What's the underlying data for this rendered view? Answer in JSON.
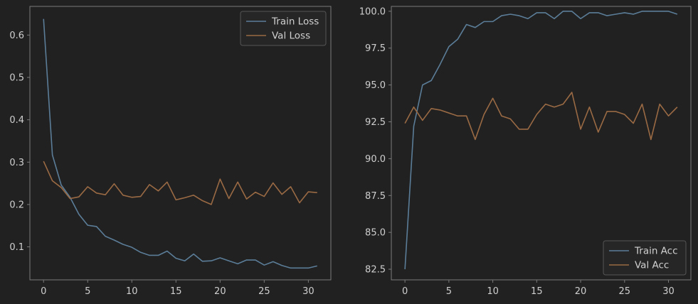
{
  "colors": {
    "background": "#212121",
    "axes_face": "#212121",
    "spine": "#7a7a7a",
    "tick": "#cfcfcf",
    "train": "#5b7d98",
    "val": "#9a6a44",
    "legend_bg": "#262626",
    "legend_edge": "#555555"
  },
  "chart_data": [
    {
      "type": "line",
      "title": "",
      "xlabel": "",
      "ylabel": "",
      "xlim": [
        -1.55,
        32.55
      ],
      "ylim": [
        0.0221,
        0.6677
      ],
      "xticks": [
        0,
        5,
        10,
        15,
        20,
        25,
        30
      ],
      "xtick_labels": [
        "0",
        "5",
        "10",
        "15",
        "20",
        "25",
        "30"
      ],
      "yticks": [
        0.1,
        0.2,
        0.3,
        0.4,
        0.5,
        0.6
      ],
      "ytick_labels": [
        "0.1",
        "0.2",
        "0.3",
        "0.4",
        "0.5",
        "0.6"
      ],
      "legend_position": "upper right",
      "grid": false,
      "x": [
        0,
        1,
        2,
        3,
        4,
        5,
        6,
        7,
        8,
        9,
        10,
        11,
        12,
        13,
        14,
        15,
        16,
        17,
        18,
        19,
        20,
        21,
        22,
        23,
        24,
        25,
        26,
        27,
        28,
        29,
        30,
        31
      ],
      "series": [
        {
          "name": "Train Loss",
          "color": "#5b7d98",
          "values": [
            0.638,
            0.317,
            0.246,
            0.217,
            0.177,
            0.151,
            0.148,
            0.125,
            0.116,
            0.106,
            0.099,
            0.087,
            0.08,
            0.08,
            0.09,
            0.073,
            0.067,
            0.083,
            0.066,
            0.067,
            0.074,
            0.067,
            0.06,
            0.069,
            0.069,
            0.057,
            0.065,
            0.056,
            0.05,
            0.05,
            0.05,
            0.055
          ]
        },
        {
          "name": "Val Loss",
          "color": "#9a6a44",
          "values": [
            0.302,
            0.256,
            0.24,
            0.214,
            0.218,
            0.242,
            0.227,
            0.223,
            0.249,
            0.222,
            0.217,
            0.219,
            0.247,
            0.232,
            0.253,
            0.211,
            0.216,
            0.222,
            0.209,
            0.2,
            0.26,
            0.214,
            0.253,
            0.213,
            0.229,
            0.219,
            0.251,
            0.224,
            0.242,
            0.204,
            0.23,
            0.228
          ]
        }
      ]
    },
    {
      "type": "line",
      "title": "",
      "xlabel": "",
      "ylabel": "",
      "xlim": [
        -1.55,
        32.55
      ],
      "ylim": [
        81.78,
        100.33
      ],
      "xticks": [
        0,
        5,
        10,
        15,
        20,
        25,
        30
      ],
      "xtick_labels": [
        "0",
        "5",
        "10",
        "15",
        "20",
        "25",
        "30"
      ],
      "yticks": [
        82.5,
        85.0,
        87.5,
        90.0,
        92.5,
        95.0,
        97.5,
        100.0
      ],
      "ytick_labels": [
        "82.5",
        "85.0",
        "87.5",
        "90.0",
        "92.5",
        "95.0",
        "97.5",
        "100.0"
      ],
      "legend_position": "lower right",
      "grid": false,
      "x": [
        0,
        1,
        2,
        3,
        4,
        5,
        6,
        7,
        8,
        9,
        10,
        11,
        12,
        13,
        14,
        15,
        16,
        17,
        18,
        19,
        20,
        21,
        22,
        23,
        24,
        25,
        26,
        27,
        28,
        29,
        30,
        31
      ],
      "series": [
        {
          "name": "Train Acc",
          "color": "#5b7d98",
          "values": [
            82.5,
            92.2,
            95.0,
            95.3,
            96.4,
            97.6,
            98.1,
            99.1,
            98.9,
            99.3,
            99.3,
            99.7,
            99.8,
            99.7,
            99.5,
            99.9,
            99.9,
            99.5,
            100.0,
            100.0,
            99.5,
            99.9,
            99.9,
            99.7,
            99.8,
            99.9,
            99.8,
            100.0,
            100.0,
            100.0,
            100.0,
            99.8
          ]
        },
        {
          "name": "Val Acc",
          "color": "#9a6a44",
          "values": [
            92.4,
            93.5,
            92.6,
            93.4,
            93.3,
            93.1,
            92.9,
            92.9,
            91.3,
            93.0,
            94.1,
            92.9,
            92.7,
            92.0,
            92.0,
            93.0,
            93.7,
            93.5,
            93.7,
            94.5,
            92.0,
            93.5,
            91.8,
            93.2,
            93.2,
            93.0,
            92.4,
            93.7,
            91.3,
            93.7,
            92.9,
            93.5
          ]
        }
      ]
    }
  ]
}
